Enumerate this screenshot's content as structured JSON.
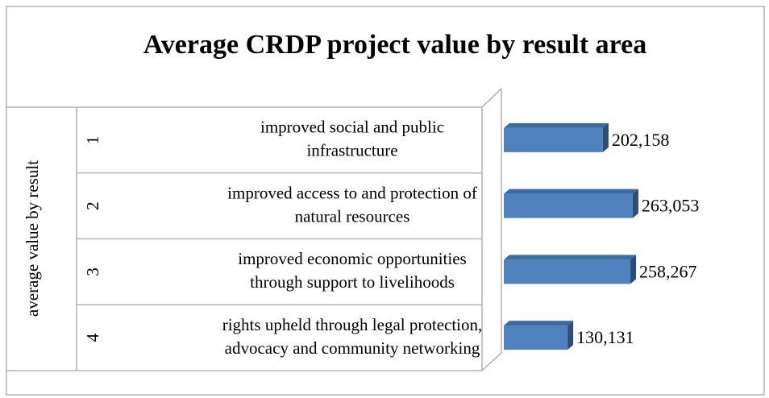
{
  "chart_data": {
    "type": "bar",
    "orientation": "horizontal",
    "title": "Average CRDP project value by result area",
    "group_label": "average value by result",
    "category_numbers": [
      "1",
      "2",
      "3",
      "4"
    ],
    "categories": [
      [
        "improved social and public",
        "infrastructure"
      ],
      [
        "improved access to and protection of",
        "natural resources"
      ],
      [
        "improved economic opportunities",
        "through support to livelihoods"
      ],
      [
        "rights upheld through legal protection,",
        "advocacy and community networking"
      ]
    ],
    "values": [
      202158,
      263053,
      258267,
      130131
    ],
    "value_labels": [
      "202,158",
      "263,053",
      "258,267",
      "130,131"
    ],
    "color": "#4f81bd",
    "xlim": [
      0,
      500000
    ]
  }
}
